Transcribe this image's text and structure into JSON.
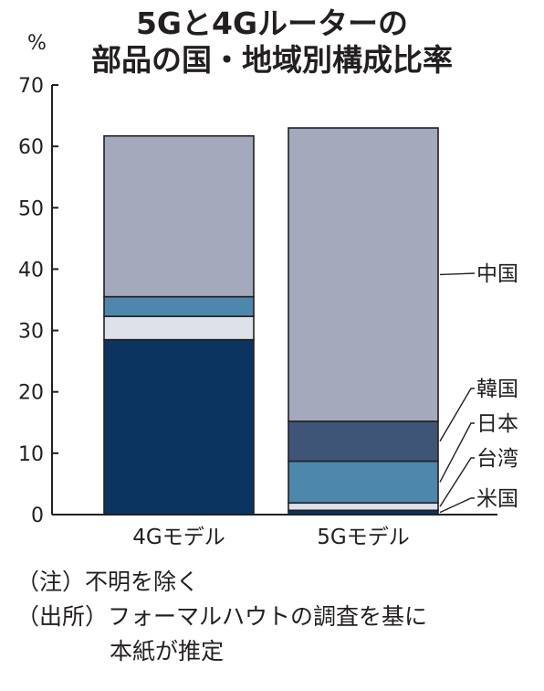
{
  "title": {
    "line1": "5Gと4Gルーターの",
    "line2": "部品の国・地域別構成比率"
  },
  "colors": {
    "us": "#0b3560",
    "taiwan": "#dde2ea",
    "japan": "#4e87ac",
    "korea": "#3e5577",
    "china": "#a4a9bc",
    "axis": "#231f20"
  },
  "chart_data": {
    "type": "bar",
    "stacked": true,
    "ylabel": "%",
    "ylim": [
      0,
      70
    ],
    "yticks": [
      0,
      10,
      20,
      30,
      40,
      50,
      60,
      70
    ],
    "grid": false,
    "categories": [
      "4Gモデル",
      "5Gモデル"
    ],
    "series": [
      {
        "name": "米国",
        "key": "us",
        "values": [
          28.5,
          0.7
        ]
      },
      {
        "name": "台湾",
        "key": "taiwan",
        "values": [
          3.8,
          1.2
        ]
      },
      {
        "name": "日本",
        "key": "japan",
        "values": [
          3.2,
          6.8
        ]
      },
      {
        "name": "韓国",
        "key": "korea",
        "values": [
          0,
          6.5
        ]
      },
      {
        "name": "中国",
        "key": "china",
        "values": [
          26.2,
          47.8
        ]
      }
    ],
    "legend_placement": "right of 5G bar, labels with leader lines"
  },
  "notes": {
    "note": "（注）不明を除く",
    "source_line1": "（出所）フォーマルハウトの調査を基に",
    "source_line2": "本紙が推定"
  }
}
